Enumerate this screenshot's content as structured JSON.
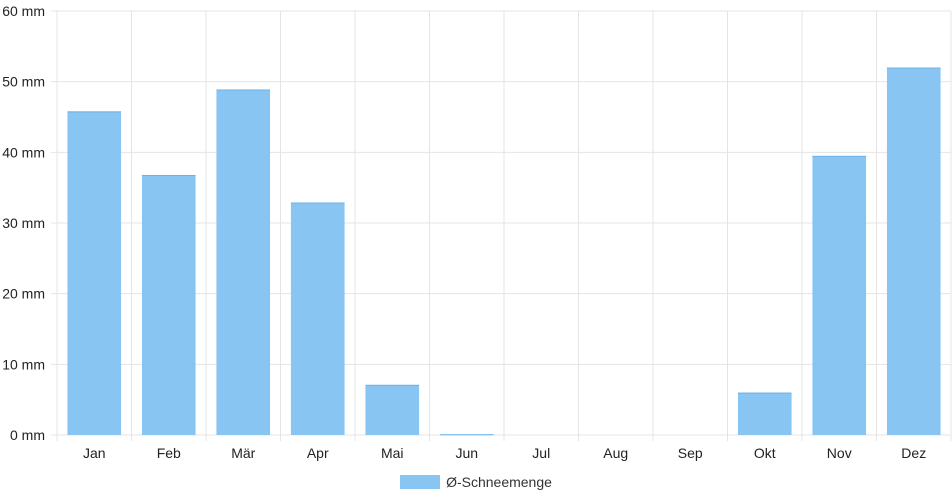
{
  "chart_data": {
    "type": "bar",
    "categories": [
      "Jan",
      "Feb",
      "Mär",
      "Apr",
      "Mai",
      "Jun",
      "Jul",
      "Aug",
      "Sep",
      "Okt",
      "Nov",
      "Dez"
    ],
    "series": [
      {
        "name": "Ø-Schneemenge",
        "values": [
          45.8,
          36.8,
          48.9,
          32.9,
          7.1,
          0.1,
          0,
          0,
          0,
          6.0,
          39.5,
          52.0
        ],
        "color": "#88c5f2"
      }
    ],
    "y_ticks": [
      "0 mm",
      "10 mm",
      "20 mm",
      "30 mm",
      "40 mm",
      "50 mm",
      "60 mm"
    ],
    "ylim": [
      0,
      60
    ],
    "grid": true,
    "legend": "bottom-center",
    "grid_color": "#e4e4e4"
  }
}
